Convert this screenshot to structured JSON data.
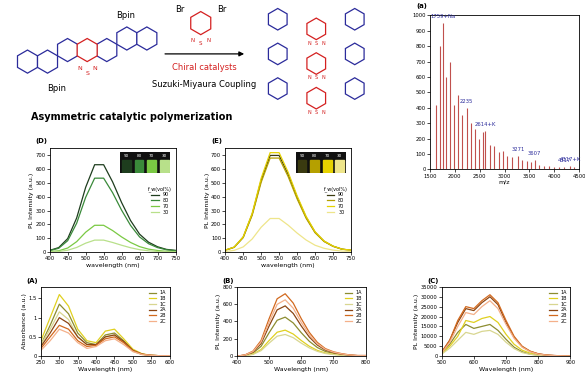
{
  "scheme": {
    "monomer_groups": [
      "Bpin",
      "Bpin"
    ],
    "comonomer_groups": [
      "Br",
      "Br"
    ],
    "heteroatoms": [
      "N",
      "S",
      "N"
    ],
    "reagent": "Chiral catalysts",
    "reaction": "Suzuki-Miyaura Coupling",
    "caption": "Asymmetric catalytic polymerization"
  },
  "chart_data": [
    {
      "type": "stem",
      "panel": "(a)",
      "x_label": "m/z",
      "color": "#c0504d",
      "xlim": [
        1500,
        4500
      ],
      "xticks": [
        1500,
        2000,
        2500,
        3000,
        3500,
        4000,
        4500
      ],
      "ylim": [
        0,
        1000
      ],
      "yticks": [
        0,
        100,
        200,
        300,
        400,
        500,
        600,
        700,
        800,
        900,
        1000
      ],
      "x": [
        1620,
        1700,
        1759,
        1830,
        1900,
        1980,
        2060,
        2140,
        2235,
        2320,
        2400,
        2480,
        2560,
        2614,
        2700,
        2790,
        2880,
        2960,
        3050,
        3140,
        3271,
        3360,
        3450,
        3530,
        3607,
        3700,
        3800,
        3900,
        4000,
        4100,
        4200,
        4317,
        4400
      ],
      "values": [
        420,
        800,
        950,
        600,
        700,
        420,
        480,
        350,
        400,
        300,
        260,
        200,
        240,
        250,
        160,
        150,
        110,
        120,
        90,
        80,
        90,
        60,
        55,
        45,
        60,
        30,
        25,
        20,
        18,
        15,
        15,
        25,
        15
      ],
      "annotations": [
        {
          "text": "1759+Na",
          "x": 1759
        },
        {
          "text": "2235",
          "x": 2235
        },
        {
          "text": "2614+K",
          "x": 2614
        },
        {
          "text": "3271",
          "x": 3271
        },
        {
          "text": "3607",
          "x": 3607
        },
        {
          "text": "4317",
          "x": 4200
        },
        {
          "text": "4317+K",
          "x": 4317
        }
      ]
    },
    {
      "type": "line",
      "panel": "(D)",
      "x_label": "wavelength (nm)",
      "y_label": "PL Intensity (a.u.)",
      "xlim": [
        400,
        750
      ],
      "xticks": [
        400,
        450,
        500,
        550,
        600,
        650,
        700,
        750
      ],
      "ylim": [
        0,
        750
      ],
      "yticks": [
        0,
        100,
        200,
        300,
        400,
        500,
        600,
        700
      ],
      "legend": "center right",
      "legend_title": "f_w(vol%)",
      "x": [
        400,
        425,
        450,
        475,
        500,
        525,
        550,
        575,
        600,
        625,
        650,
        675,
        700,
        725,
        750
      ],
      "series": [
        {
          "name": "90",
          "color": "#1e3d1e",
          "values": [
            13,
            33,
            98,
            247,
            468,
            631,
            631,
            507,
            358,
            228,
            130,
            72,
            39,
            20,
            13
          ]
        },
        {
          "name": "80",
          "color": "#3a8a3a",
          "values": [
            11,
            28,
            83,
            209,
            396,
            534,
            534,
            429,
            303,
            193,
            110,
            61,
            33,
            17,
            11
          ]
        },
        {
          "name": "70",
          "color": "#7ac943",
          "values": [
            4,
            10,
            30,
            76,
            144,
            194,
            194,
            156,
            110,
            70,
            40,
            22,
            12,
            6,
            4
          ]
        },
        {
          "name": "30",
          "color": "#b8e08a",
          "values": [
            2,
            5,
            14,
            34,
            65,
            87,
            87,
            70,
            50,
            32,
            18,
            10,
            5,
            3,
            2
          ]
        }
      ]
    },
    {
      "type": "line",
      "panel": "(E)",
      "x_label": "wavelength (nm)",
      "y_label": "PL Intensity (a.u.)",
      "xlim": [
        400,
        750
      ],
      "xticks": [
        400,
        450,
        500,
        550,
        600,
        650,
        700,
        750
      ],
      "ylim": [
        0,
        750
      ],
      "yticks": [
        0,
        100,
        200,
        300,
        400,
        500,
        600,
        700
      ],
      "legend": "center right",
      "legend_title": "f_w(vol%)",
      "x": [
        400,
        425,
        450,
        475,
        500,
        525,
        550,
        575,
        600,
        625,
        650,
        675,
        700,
        725,
        750
      ],
      "series": [
        {
          "name": "90",
          "color": "#3a3a10",
          "values": [
            14,
            36,
            108,
            274,
            518,
            698,
            698,
            562,
            396,
            252,
            144,
            79,
            43,
            22,
            14
          ]
        },
        {
          "name": "80",
          "color": "#b5a000",
          "values": [
            14,
            35,
            105,
            266,
            504,
            679,
            679,
            546,
            385,
            245,
            140,
            77,
            42,
            21,
            14
          ]
        },
        {
          "name": "70",
          "color": "#e6d200",
          "values": [
            15,
            37,
            111,
            281,
            533,
            718,
            718,
            577,
            407,
            259,
            148,
            81,
            44,
            22,
            15
          ]
        },
        {
          "name": "30",
          "color": "#eee58a",
          "values": [
            5,
            13,
            38,
            95,
            180,
            243,
            243,
            195,
            138,
            88,
            50,
            28,
            15,
            8,
            5
          ]
        }
      ]
    },
    {
      "type": "line",
      "panel": "(A)",
      "x_label": "Wavelength (nm)",
      "y_label": "Absorbance (a.u.)",
      "xlim": [
        250,
        600
      ],
      "xticks": [
        250,
        300,
        350,
        400,
        450,
        500,
        550,
        600
      ],
      "ylim": [
        0,
        1.8
      ],
      "yticks": [
        0,
        0.5,
        1,
        1.5
      ],
      "legend": "upper right",
      "x": [
        250,
        275,
        300,
        325,
        350,
        375,
        400,
        425,
        450,
        475,
        500,
        525,
        550,
        575,
        600
      ],
      "series": [
        {
          "name": "1A",
          "color": "#8c8c30",
          "values": [
            0.3,
            0.8,
            1.35,
            1.1,
            0.6,
            0.35,
            0.3,
            0.55,
            0.6,
            0.4,
            0.15,
            0.05,
            0.02,
            0.01,
            0.01
          ]
        },
        {
          "name": "1B",
          "color": "#e0d020",
          "values": [
            0.4,
            1.0,
            1.6,
            1.3,
            0.7,
            0.4,
            0.35,
            0.65,
            0.7,
            0.45,
            0.18,
            0.06,
            0.02,
            0.01,
            0.01
          ]
        },
        {
          "name": "1C",
          "color": "#d8d690",
          "values": [
            0.3,
            0.7,
            1.15,
            0.95,
            0.5,
            0.3,
            0.28,
            0.5,
            0.55,
            0.35,
            0.12,
            0.04,
            0.02,
            0.01,
            0.01
          ]
        },
        {
          "name": "2A",
          "color": "#8b4513",
          "values": [
            0.25,
            0.6,
            1.0,
            0.85,
            0.5,
            0.3,
            0.3,
            0.5,
            0.55,
            0.38,
            0.15,
            0.05,
            0.02,
            0.01,
            0.01
          ]
        },
        {
          "name": "2B",
          "color": "#d2691e",
          "values": [
            0.2,
            0.5,
            0.8,
            0.7,
            0.4,
            0.25,
            0.28,
            0.45,
            0.5,
            0.35,
            0.14,
            0.05,
            0.02,
            0.01,
            0.01
          ]
        },
        {
          "name": "2C",
          "color": "#f4b08a",
          "values": [
            0.15,
            0.4,
            0.7,
            0.6,
            0.35,
            0.2,
            0.25,
            0.4,
            0.45,
            0.3,
            0.12,
            0.04,
            0.02,
            0.01,
            0.01
          ]
        }
      ]
    },
    {
      "type": "line",
      "panel": "(B)",
      "x_label": "Wavelength (nm)",
      "y_label": "PL Intensity (a.u.)",
      "xlim": [
        400,
        800
      ],
      "xticks": [
        400,
        500,
        600,
        700,
        800
      ],
      "ylim": [
        0,
        800
      ],
      "yticks": [
        0,
        200,
        400,
        600,
        800
      ],
      "legend": "upper right",
      "x": [
        400,
        425,
        450,
        475,
        500,
        525,
        550,
        575,
        600,
        625,
        650,
        675,
        700,
        725,
        750,
        775,
        800
      ],
      "series": [
        {
          "name": "1A",
          "color": "#8c8c30",
          "values": [
            0,
            9,
            36,
            113,
            270,
            414,
            450,
            383,
            270,
            171,
            99,
            54,
            32,
            18,
            9,
            5,
            5
          ]
        },
        {
          "name": "1B",
          "color": "#e0d020",
          "values": [
            0,
            6,
            24,
            75,
            180,
            276,
            300,
            255,
            180,
            114,
            66,
            36,
            21,
            12,
            6,
            3,
            3
          ]
        },
        {
          "name": "1C",
          "color": "#d8d690",
          "values": [
            0,
            5,
            20,
            63,
            150,
            230,
            250,
            213,
            150,
            95,
            55,
            30,
            18,
            10,
            5,
            3,
            3
          ]
        },
        {
          "name": "2A",
          "color": "#8b4513",
          "values": [
            0,
            12,
            46,
            145,
            348,
            534,
            580,
            493,
            348,
            220,
            128,
            70,
            41,
            23,
            12,
            6,
            6
          ]
        },
        {
          "name": "2B",
          "color": "#d2691e",
          "values": [
            0,
            14,
            58,
            180,
            432,
            662,
            720,
            612,
            432,
            274,
            158,
            86,
            50,
            29,
            14,
            7,
            7
          ]
        },
        {
          "name": "2C",
          "color": "#f4b08a",
          "values": [
            0,
            13,
            52,
            163,
            390,
            598,
            650,
            553,
            390,
            247,
            143,
            78,
            46,
            26,
            13,
            7,
            7
          ]
        }
      ]
    },
    {
      "type": "line",
      "panel": "(C)",
      "x_label": "Wavelength (nm)",
      "y_label": "PL Intensity (a.u.)",
      "xlim": [
        500,
        900
      ],
      "xticks": [
        500,
        600,
        700,
        800,
        900
      ],
      "ylim": [
        0,
        35000
      ],
      "yticks": [
        0,
        5000,
        10000,
        15000,
        20000,
        25000,
        30000,
        35000
      ],
      "legend": "upper right",
      "x": [
        500,
        525,
        550,
        575,
        600,
        625,
        650,
        675,
        700,
        725,
        750,
        775,
        800,
        825,
        850,
        875,
        900
      ],
      "series": [
        {
          "name": "1A",
          "color": "#8c8c30",
          "values": [
            1500,
            6000,
            12000,
            16000,
            14000,
            15000,
            16000,
            13000,
            8500,
            4500,
            2200,
            1000,
            500,
            250,
            120,
            60,
            40
          ]
        },
        {
          "name": "1B",
          "color": "#e0d020",
          "values": [
            1200,
            5000,
            10000,
            18000,
            17000,
            19000,
            20000,
            17000,
            11000,
            6000,
            3000,
            1500,
            700,
            350,
            170,
            80,
            50
          ]
        },
        {
          "name": "1C",
          "color": "#d8d690",
          "values": [
            1000,
            4000,
            8000,
            12000,
            11000,
            12500,
            13000,
            11000,
            7000,
            3800,
            1800,
            900,
            400,
            200,
            100,
            50,
            30
          ]
        },
        {
          "name": "2A",
          "color": "#8b4513",
          "values": [
            2000,
            8000,
            17000,
            24000,
            23000,
            27000,
            30000,
            26000,
            17000,
            9500,
            4800,
            2400,
            1100,
            550,
            300,
            150,
            100
          ]
        },
        {
          "name": "2B",
          "color": "#d2691e",
          "values": [
            2000,
            8000,
            18000,
            25000,
            24000,
            28000,
            31000,
            27000,
            18000,
            10000,
            5000,
            2500,
            1200,
            600,
            300,
            150,
            100
          ]
        },
        {
          "name": "2C",
          "color": "#f4b08a",
          "values": [
            1500,
            7000,
            15000,
            22000,
            21000,
            25000,
            28000,
            24000,
            16000,
            9000,
            4500,
            2200,
            1000,
            500,
            250,
            120,
            80
          ]
        }
      ]
    }
  ]
}
